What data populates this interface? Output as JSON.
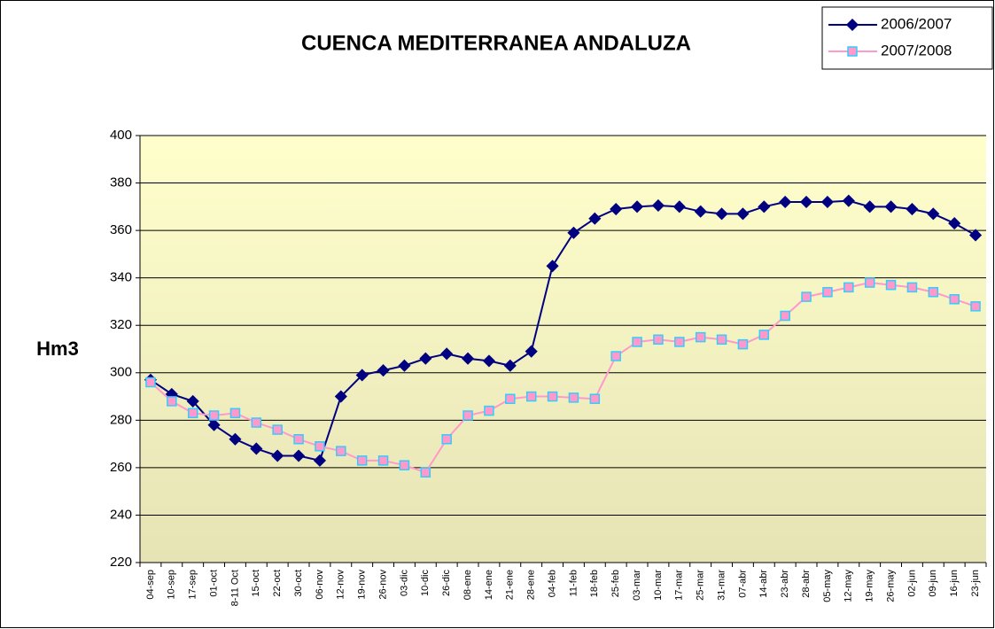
{
  "chart_data": {
    "type": "line",
    "title": "CUENCA  MEDITERRANEA ANDALUZA",
    "y_label": "Hm3",
    "categories": [
      "04-sep",
      "10-sep",
      "17-sep",
      "01-oct",
      "8-11 Oct",
      "15-oct",
      "22-oct",
      "30-oct",
      "06-nov",
      "12-nov",
      "19-nov",
      "26-nov",
      "03-dic",
      "10-dic",
      "26-dic",
      "08-ene",
      "14-ene",
      "21-ene",
      "28-ene",
      "04-feb",
      "11-feb",
      "18-feb",
      "25-feb",
      "03-mar",
      "10-mar",
      "17-mar",
      "25-mar",
      "31-mar",
      "07-abr",
      "14-abr",
      "23-abr",
      "28-abr",
      "05-may",
      "12-may",
      "19-may",
      "26-may",
      "02-jun",
      "09-jun",
      "16-jun",
      "23-jun"
    ],
    "series": [
      {
        "name": "2006/2007",
        "color": "#000080",
        "marker": "diamond",
        "marker_fill": "#000080",
        "marker_edge": "#000080",
        "values": [
          297,
          291,
          288,
          278,
          272,
          268,
          265,
          265,
          263,
          290,
          299,
          301,
          303,
          306,
          308,
          306,
          305,
          303,
          309,
          345,
          359,
          365,
          369,
          370,
          370.5,
          370,
          368,
          367,
          367,
          370,
          372,
          372,
          372,
          372.5,
          370,
          370,
          369,
          367,
          363,
          358
        ]
      },
      {
        "name": "2007/2008",
        "color": "#ff99cc",
        "marker": "square",
        "marker_fill": "#ff99cc",
        "marker_edge": "#33ccff",
        "values": [
          296,
          288,
          283,
          282,
          283,
          279,
          276,
          272,
          269,
          267,
          263,
          263,
          261,
          258,
          272,
          282,
          284,
          289,
          290,
          290,
          289.5,
          289,
          307,
          313,
          314,
          313,
          315,
          314,
          312,
          316,
          324,
          332,
          334,
          336,
          338,
          337,
          336,
          334,
          331,
          328
        ]
      }
    ],
    "ylim": [
      220,
      400
    ],
    "yticks": [
      220,
      240,
      260,
      280,
      300,
      320,
      340,
      360,
      380,
      400
    ],
    "grid": true,
    "legend": "top-right"
  }
}
